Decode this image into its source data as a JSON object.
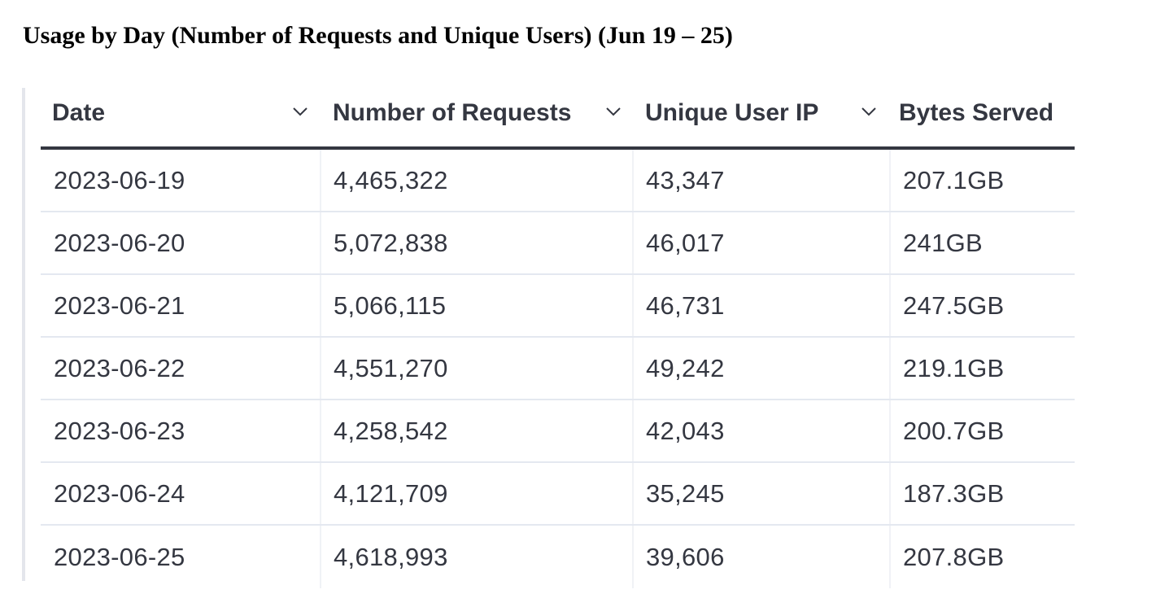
{
  "page": {
    "title": "Usage by Day (Number of Requests and Unique Users) (Jun 19 – 25)"
  },
  "table": {
    "columns": [
      {
        "label": "Date",
        "icon": "chevron-down-icon"
      },
      {
        "label": "Number of Requests",
        "icon": "chevron-down-icon"
      },
      {
        "label": "Unique User IP",
        "icon": "chevron-down-icon"
      },
      {
        "label": "Bytes Served"
      }
    ],
    "rows": [
      [
        "2023-06-19",
        "4,465,322",
        "43,347",
        "207.1GB"
      ],
      [
        "2023-06-20",
        "5,072,838",
        "46,017",
        "241GB"
      ],
      [
        "2023-06-21",
        "5,066,115",
        "46,731",
        "247.5GB"
      ],
      [
        "2023-06-22",
        "4,551,270",
        "49,242",
        "219.1GB"
      ],
      [
        "2023-06-23",
        "4,258,542",
        "42,043",
        "200.7GB"
      ],
      [
        "2023-06-24",
        "4,121,709",
        "35,245",
        "187.3GB"
      ],
      [
        "2023-06-25",
        "4,618,993",
        "39,606",
        "207.8GB"
      ]
    ]
  },
  "colors": {
    "text": "#343741",
    "header_rule": "#343741",
    "row_divider": "#e4e8f0"
  }
}
